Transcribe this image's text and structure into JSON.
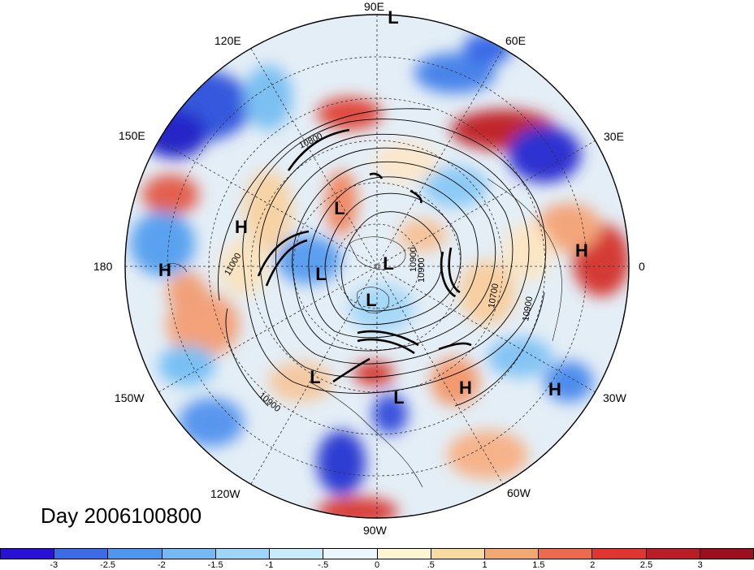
{
  "title": "Day 2006100800",
  "lon_labels": [
    {
      "id": "90e",
      "text": "90E"
    },
    {
      "id": "60e",
      "text": "60E"
    },
    {
      "id": "30e",
      "text": "30E"
    },
    {
      "id": "0",
      "text": "0"
    },
    {
      "id": "30w",
      "text": "30W"
    },
    {
      "id": "60w",
      "text": "60W"
    },
    {
      "id": "90w",
      "text": "90W"
    },
    {
      "id": "120w",
      "text": "120W"
    },
    {
      "id": "150w",
      "text": "150W"
    },
    {
      "id": "180",
      "text": "180"
    },
    {
      "id": "150e",
      "text": "150E"
    },
    {
      "id": "120e",
      "text": "120E"
    }
  ],
  "pressure_centers": [
    {
      "type": "L",
      "label": "L"
    },
    {
      "type": "L",
      "label": "L"
    },
    {
      "type": "L",
      "label": "L"
    },
    {
      "type": "L",
      "label": "L"
    },
    {
      "type": "L",
      "label": "L"
    },
    {
      "type": "L",
      "label": "L"
    },
    {
      "type": "L",
      "label": "L"
    },
    {
      "type": "H",
      "label": "H"
    },
    {
      "type": "H",
      "label": "H"
    },
    {
      "type": "H",
      "label": "H"
    },
    {
      "type": "H",
      "label": "H"
    },
    {
      "type": "H",
      "label": "H"
    }
  ],
  "contour_labels": [
    "10800",
    "11000",
    "10900",
    "10900",
    "10900",
    "10700",
    "10900"
  ],
  "colorbar": {
    "tick_labels": [
      "-3",
      "-2.5",
      "-2",
      "-1.5",
      "-1",
      "-.5",
      "0",
      ".5",
      "1",
      "1.5",
      "2",
      "2.5",
      "3"
    ],
    "colors": [
      "#2a0fd4",
      "#3d6be6",
      "#4f96ef",
      "#76b8f4",
      "#9ed5f8",
      "#c8ecfb",
      "#eaf8fd",
      "#fdf5d2",
      "#f7dca2",
      "#f2a873",
      "#ec6a4e",
      "#e03530",
      "#b81d28",
      "#9b0f1e"
    ]
  },
  "colors": {
    "ocean_field": "#dde9f4",
    "contours": "#000000",
    "grid": "#333333"
  }
}
